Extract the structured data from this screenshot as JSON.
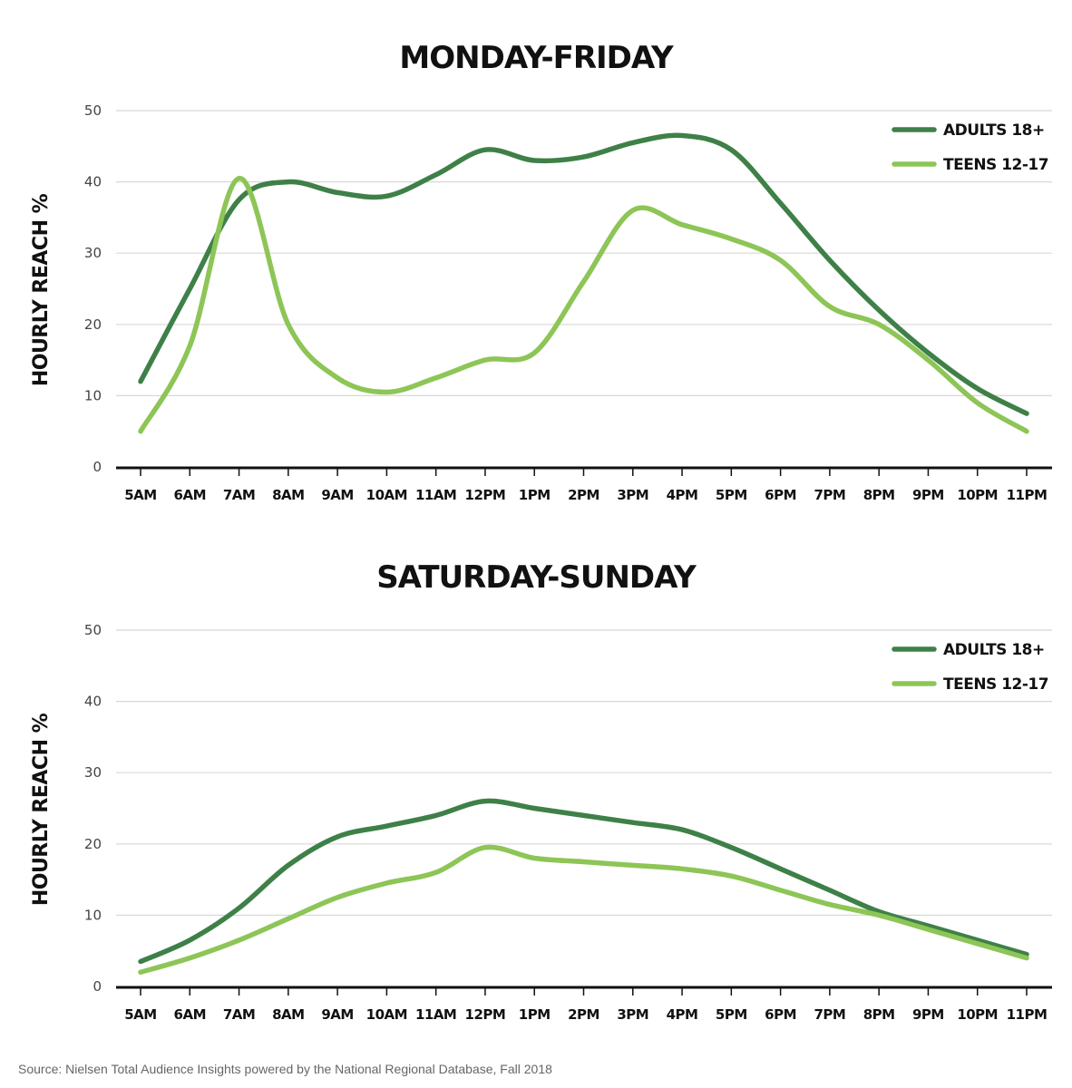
{
  "colors": {
    "adults": "#3e8048",
    "teens": "#8dc556",
    "grid": "#d8d8d8",
    "axis": "#111111"
  },
  "source": "Source: Nielsen Total Audience Insights powered by the National Regional Database, Fall 2018",
  "chart_data": [
    {
      "type": "line",
      "title": "MONDAY-FRIDAY",
      "ylabel": "HOURLY REACH %",
      "xlabel": "",
      "ylim": [
        0,
        50
      ],
      "yticks": [
        "0",
        "10",
        "20",
        "30",
        "40",
        "50"
      ],
      "categories": [
        "5AM",
        "6AM",
        "7AM",
        "8AM",
        "9AM",
        "10AM",
        "11AM",
        "12PM",
        "1PM",
        "2PM",
        "3PM",
        "4PM",
        "5PM",
        "6PM",
        "7PM",
        "8PM",
        "9PM",
        "10PM",
        "11PM"
      ],
      "grid": true,
      "legend": "top-right",
      "series": [
        {
          "name": "ADULTS 18+",
          "color": "adults",
          "values": [
            12,
            25,
            37.5,
            40,
            38.5,
            38,
            41,
            44.5,
            43,
            43.5,
            45.5,
            46.5,
            44.5,
            37,
            29,
            22,
            16,
            11,
            7.5
          ]
        },
        {
          "name": "TEENS 12-17",
          "color": "teens",
          "values": [
            5,
            17,
            40.5,
            20,
            12.5,
            10.5,
            12.5,
            15,
            16,
            26,
            36,
            34,
            32,
            29,
            22.5,
            20,
            15,
            9,
            5
          ]
        }
      ]
    },
    {
      "type": "line",
      "title": "SATURDAY-SUNDAY",
      "ylabel": "HOURLY REACH %",
      "xlabel": "",
      "ylim": [
        0,
        50
      ],
      "yticks": [
        "0",
        "10",
        "20",
        "30",
        "40",
        "50"
      ],
      "categories": [
        "5AM",
        "6AM",
        "7AM",
        "8AM",
        "9AM",
        "10AM",
        "11AM",
        "12PM",
        "1PM",
        "2PM",
        "3PM",
        "4PM",
        "5PM",
        "6PM",
        "7PM",
        "8PM",
        "9PM",
        "10PM",
        "11PM"
      ],
      "grid": true,
      "legend": "top-right",
      "series": [
        {
          "name": "ADULTS 18+",
          "color": "adults",
          "values": [
            3.5,
            6.5,
            11,
            17,
            21,
            22.5,
            24,
            26,
            25,
            24,
            23,
            22,
            19.5,
            16.5,
            13.5,
            10.5,
            8.5,
            6.5,
            4.5
          ]
        },
        {
          "name": "TEENS 12-17",
          "color": "teens",
          "values": [
            2,
            4,
            6.5,
            9.5,
            12.5,
            14.5,
            16,
            19.5,
            18,
            17.5,
            17,
            16.5,
            15.5,
            13.5,
            11.5,
            10,
            8,
            6,
            4
          ]
        }
      ]
    }
  ]
}
